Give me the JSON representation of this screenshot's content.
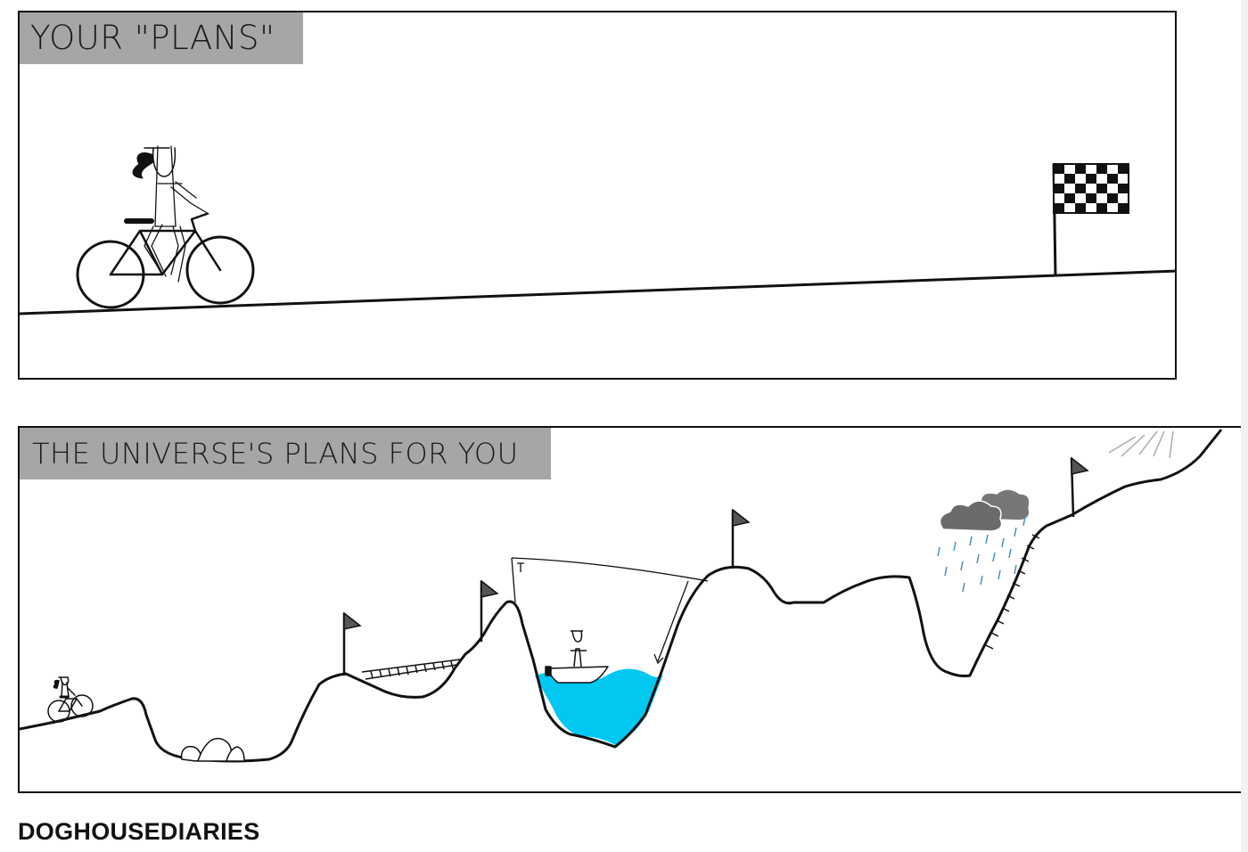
{
  "panels": [
    {
      "caption": "YOUR \"PLANS\""
    },
    {
      "caption": "THE UNIVERSE'S PLANS FOR YOU"
    }
  ],
  "credit": "DOGHOUSEDIARIES",
  "colors": {
    "caption_background": "#a6a6a6",
    "water": "#00c8f0",
    "cloud": "#707070",
    "rain": "#4a8fc0",
    "ink": "#111111"
  },
  "icons": [
    "bicycle-rider-icon",
    "checkered-flag-icon",
    "flag-icon",
    "boat-icon",
    "rain-cloud-icon",
    "sun-rays-icon"
  ]
}
